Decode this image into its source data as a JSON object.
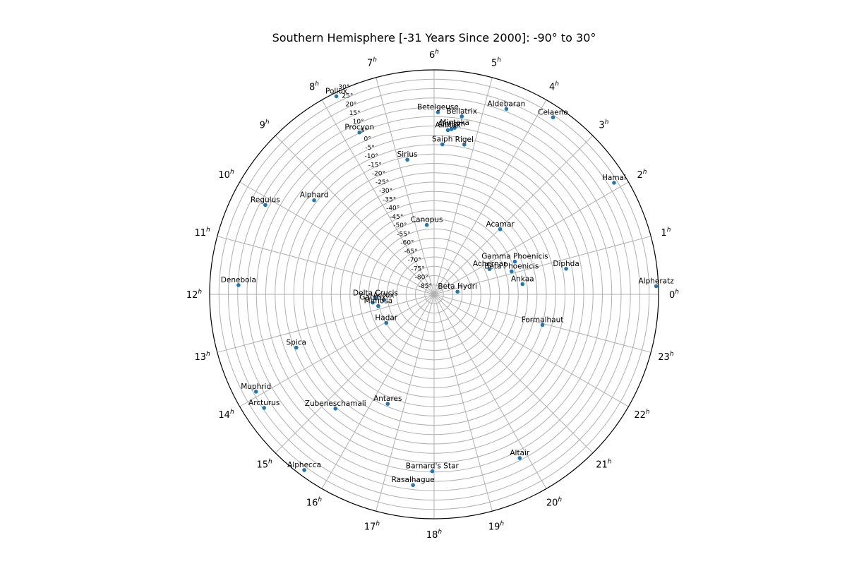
{
  "chart_data": {
    "type": "scatter",
    "projection": "polar",
    "title": "Southern Hemisphere [-31 Years Since 2000]: -90° to 30°",
    "dec_range": [
      -90,
      30
    ],
    "radial_tick_step": 5,
    "radial_ticks": [
      "-90°",
      "-85°",
      "-80°",
      "-75°",
      "-70°",
      "-65°",
      "-60°",
      "-55°",
      "-50°",
      "-45°",
      "-40°",
      "-35°",
      "-30°",
      "-25°",
      "-20°",
      "-15°",
      "-10°",
      "-5°",
      "0°",
      "5°",
      "10°",
      "15°",
      "20°",
      "25°",
      "30°"
    ],
    "hour_ticks": [
      {
        "num": "0",
        "sup": "h"
      },
      {
        "num": "1",
        "sup": "h"
      },
      {
        "num": "2",
        "sup": "h"
      },
      {
        "num": "3",
        "sup": "h"
      },
      {
        "num": "4",
        "sup": "h"
      },
      {
        "num": "5",
        "sup": "h"
      },
      {
        "num": "6",
        "sup": "h"
      },
      {
        "num": "7",
        "sup": "h"
      },
      {
        "num": "8",
        "sup": "h"
      },
      {
        "num": "9",
        "sup": "h"
      },
      {
        "num": "10",
        "sup": "h"
      },
      {
        "num": "11",
        "sup": "h"
      },
      {
        "num": "12",
        "sup": "h"
      },
      {
        "num": "13",
        "sup": "h"
      },
      {
        "num": "14",
        "sup": "h"
      },
      {
        "num": "15",
        "sup": "h"
      },
      {
        "num": "16",
        "sup": "h"
      },
      {
        "num": "17",
        "sup": "h"
      },
      {
        "num": "18",
        "sup": "h"
      },
      {
        "num": "19",
        "sup": "h"
      },
      {
        "num": "20",
        "sup": "h"
      },
      {
        "num": "21",
        "sup": "h"
      },
      {
        "num": "22",
        "sup": "h"
      },
      {
        "num": "23",
        "sup": "h"
      }
    ],
    "grid": true,
    "marker_color": "#1f77b4",
    "stars": [
      {
        "name": "Alpheratz",
        "ra": 0.14,
        "dec": 28.8
      },
      {
        "name": "Hamal",
        "ra": 2.12,
        "dec": 23.2
      },
      {
        "name": "Celaeno",
        "ra": 3.74,
        "dec": 24.0
      },
      {
        "name": "Aldebaran",
        "ra": 4.58,
        "dec": 16.4
      },
      {
        "name": "Bellatrix",
        "ra": 5.41,
        "dec": 6.3
      },
      {
        "name": "Betelgeuse",
        "ra": 5.92,
        "dec": 7.4
      },
      {
        "name": "Mintaka",
        "ra": 5.53,
        "dec": -0.3
      },
      {
        "name": "Alnilam",
        "ra": 5.6,
        "dec": -1.2
      },
      {
        "name": "Alnitak",
        "ra": 5.68,
        "dec": -1.9
      },
      {
        "name": "Rigel",
        "ra": 5.24,
        "dec": -8.3
      },
      {
        "name": "Saiph",
        "ra": 5.79,
        "dec": -9.7
      },
      {
        "name": "Sirius",
        "ra": 6.75,
        "dec": -16.6
      },
      {
        "name": "Procyon",
        "ra": 7.65,
        "dec": 5.3
      },
      {
        "name": "Pollux",
        "ra": 7.75,
        "dec": 28.1
      },
      {
        "name": "Alphard",
        "ra": 9.46,
        "dec": -8.5
      },
      {
        "name": "Regulus",
        "ra": 10.14,
        "dec": 12.1
      },
      {
        "name": "Denebola",
        "ra": 11.82,
        "dec": 14.7
      },
      {
        "name": "Canopus",
        "ra": 6.4,
        "dec": -52.7
      },
      {
        "name": "Acamar",
        "ra": 2.97,
        "dec": -40.4
      },
      {
        "name": "Diphda",
        "ra": 0.73,
        "dec": -18.1
      },
      {
        "name": "Ankaa",
        "ra": 0.44,
        "dec": -42.4
      },
      {
        "name": "Achernar",
        "ra": 1.63,
        "dec": -57.4
      },
      {
        "name": "Gamma Phoenicis",
        "ra": 1.47,
        "dec": -43.4
      },
      {
        "name": "Beta Phoenicis",
        "ra": 1.1,
        "dec": -46.8
      },
      {
        "name": "Beta Hydri",
        "ra": 0.43,
        "dec": -77.4
      },
      {
        "name": "Formalhaut",
        "ra": 22.95,
        "dec": -29.8
      },
      {
        "name": "Delta Crucis",
        "ra": 12.25,
        "dec": -58.6
      },
      {
        "name": "Acrux",
        "ra": 12.44,
        "dec": -62.9
      },
      {
        "name": "Gacrux",
        "ra": 12.51,
        "dec": -56.9
      },
      {
        "name": "Mimosa",
        "ra": 12.79,
        "dec": -59.5
      },
      {
        "name": "Hadar",
        "ra": 14.06,
        "dec": -60.2
      },
      {
        "name": "Spica",
        "ra": 13.41,
        "dec": -11.0
      },
      {
        "name": "Muphrid",
        "ra": 13.91,
        "dec": 18.5
      },
      {
        "name": "Arcturus",
        "ra": 14.25,
        "dec": 19.3
      },
      {
        "name": "Zubeneschamali",
        "ra": 15.28,
        "dec": -9.3
      },
      {
        "name": "Antares",
        "ra": 16.47,
        "dec": -26.4
      },
      {
        "name": "Alphecca",
        "ra": 15.57,
        "dec": 26.8
      },
      {
        "name": "Rasalhague",
        "ra": 17.58,
        "dec": 12.6
      },
      {
        "name": "Barnard's Star",
        "ra": 17.96,
        "dec": 4.6
      },
      {
        "name": "Altair",
        "ra": 19.84,
        "dec": 8.8
      }
    ]
  }
}
